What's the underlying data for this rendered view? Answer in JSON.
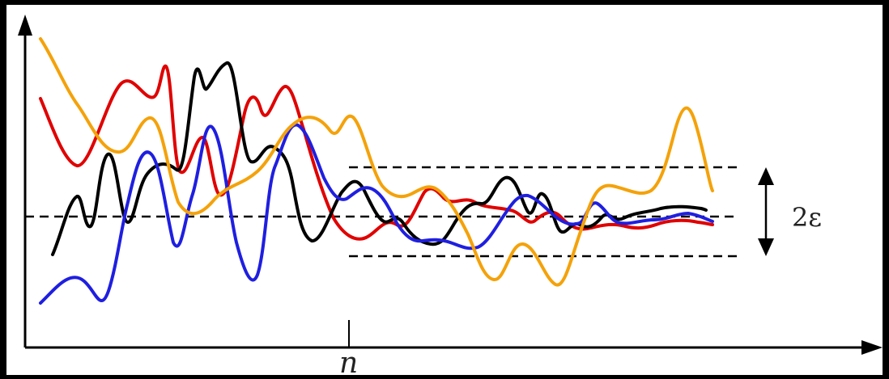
{
  "figure": {
    "x_tick_label": "n",
    "band_label": "2ε"
  },
  "colors": {
    "background": "#ffffff",
    "frame": "#000000",
    "axis": "#000000",
    "series": [
      "#e00000",
      "#000000",
      "#1f1fe0",
      "#f4a20a"
    ]
  },
  "series_names": [
    "red-curve",
    "black-curve",
    "blue-curve",
    "orange-curve"
  ]
}
